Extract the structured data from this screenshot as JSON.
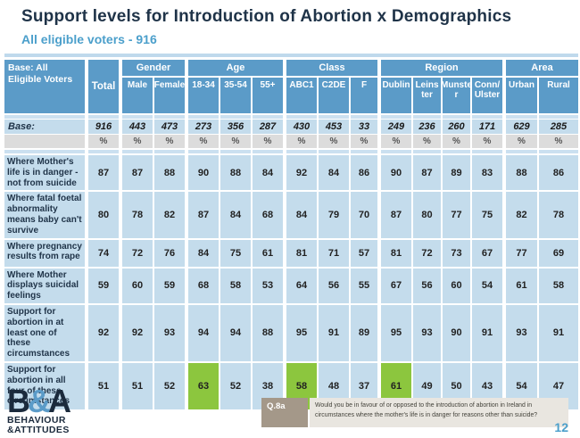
{
  "slide": {
    "title": "Support levels for Introduction of Abortion x Demographics",
    "subtitle": "All eligible voters - 916"
  },
  "table": {
    "corner_label": "Base:  All Eligible Voters",
    "total_label": "Total",
    "percent_symbol": "%",
    "groups": [
      {
        "label": "Gender",
        "cols": [
          "Male",
          "Female"
        ]
      },
      {
        "label": "Age",
        "cols": [
          "18-34",
          "35-54",
          "55+"
        ]
      },
      {
        "label": "Class",
        "cols": [
          "ABC1",
          "C2DE",
          "F"
        ]
      },
      {
        "label": "Region",
        "cols": [
          "Dublin",
          "Leins ter",
          "Munste r",
          "Conn/ Ulster"
        ]
      },
      {
        "label": "Area",
        "cols": [
          "Urban",
          "Rural"
        ]
      }
    ],
    "base_row": {
      "label": "Base:",
      "values": [
        "916",
        "443",
        "473",
        "273",
        "356",
        "287",
        "430",
        "453",
        "33",
        "249",
        "236",
        "260",
        "171",
        "629",
        "285"
      ]
    },
    "rows": [
      {
        "label": "Where Mother's life is in danger - not from suicide",
        "values": [
          87,
          87,
          88,
          90,
          88,
          84,
          92,
          84,
          86,
          90,
          87,
          89,
          83,
          88,
          86
        ]
      },
      {
        "label": "Where fatal foetal abnormality means baby can't survive",
        "values": [
          80,
          78,
          82,
          87,
          84,
          68,
          84,
          79,
          70,
          87,
          80,
          77,
          75,
          82,
          78
        ]
      },
      {
        "label": "Where pregnancy results from rape",
        "values": [
          74,
          72,
          76,
          84,
          75,
          61,
          81,
          71,
          57,
          81,
          72,
          73,
          67,
          77,
          69
        ]
      },
      {
        "label": "Where Mother displays suicidal feelings",
        "values": [
          59,
          60,
          59,
          68,
          58,
          53,
          64,
          56,
          55,
          67,
          56,
          60,
          54,
          61,
          58
        ]
      },
      {
        "label": "Support for abortion in at least one of these circumstances",
        "values": [
          92,
          92,
          93,
          94,
          94,
          88,
          95,
          91,
          89,
          95,
          93,
          90,
          91,
          93,
          91
        ]
      },
      {
        "label": "Support for abortion in all four of these circumstances",
        "values": [
          51,
          51,
          52,
          63,
          52,
          38,
          58,
          48,
          37,
          61,
          49,
          50,
          43,
          54,
          47
        ],
        "highlight": [
          3,
          6,
          9
        ]
      }
    ]
  },
  "footer": {
    "logo": {
      "b": "B",
      "amp": "&",
      "a": "A",
      "line1": "BEHAVIOUR",
      "line2": "&ATTITUDES"
    },
    "question_label": "Q.8a",
    "question_text": "Would you be in favour of or opposed to the introduction of abortion in Ireland in circumstances where the mother's life is in danger for reasons other than suicide?",
    "page_number": "12"
  },
  "colors": {
    "header_blue": "#5B9BC8",
    "cell_blue": "#C4DCEC",
    "strip_blue": "#CBE0F0",
    "percent_gray": "#DCDCDC",
    "highlight_green": "#8CC63E",
    "title_navy": "#1F3348",
    "accent_blue": "#4B9FCB",
    "question_label_bg": "#A49889",
    "question_text_bg": "#E9E6E0"
  }
}
